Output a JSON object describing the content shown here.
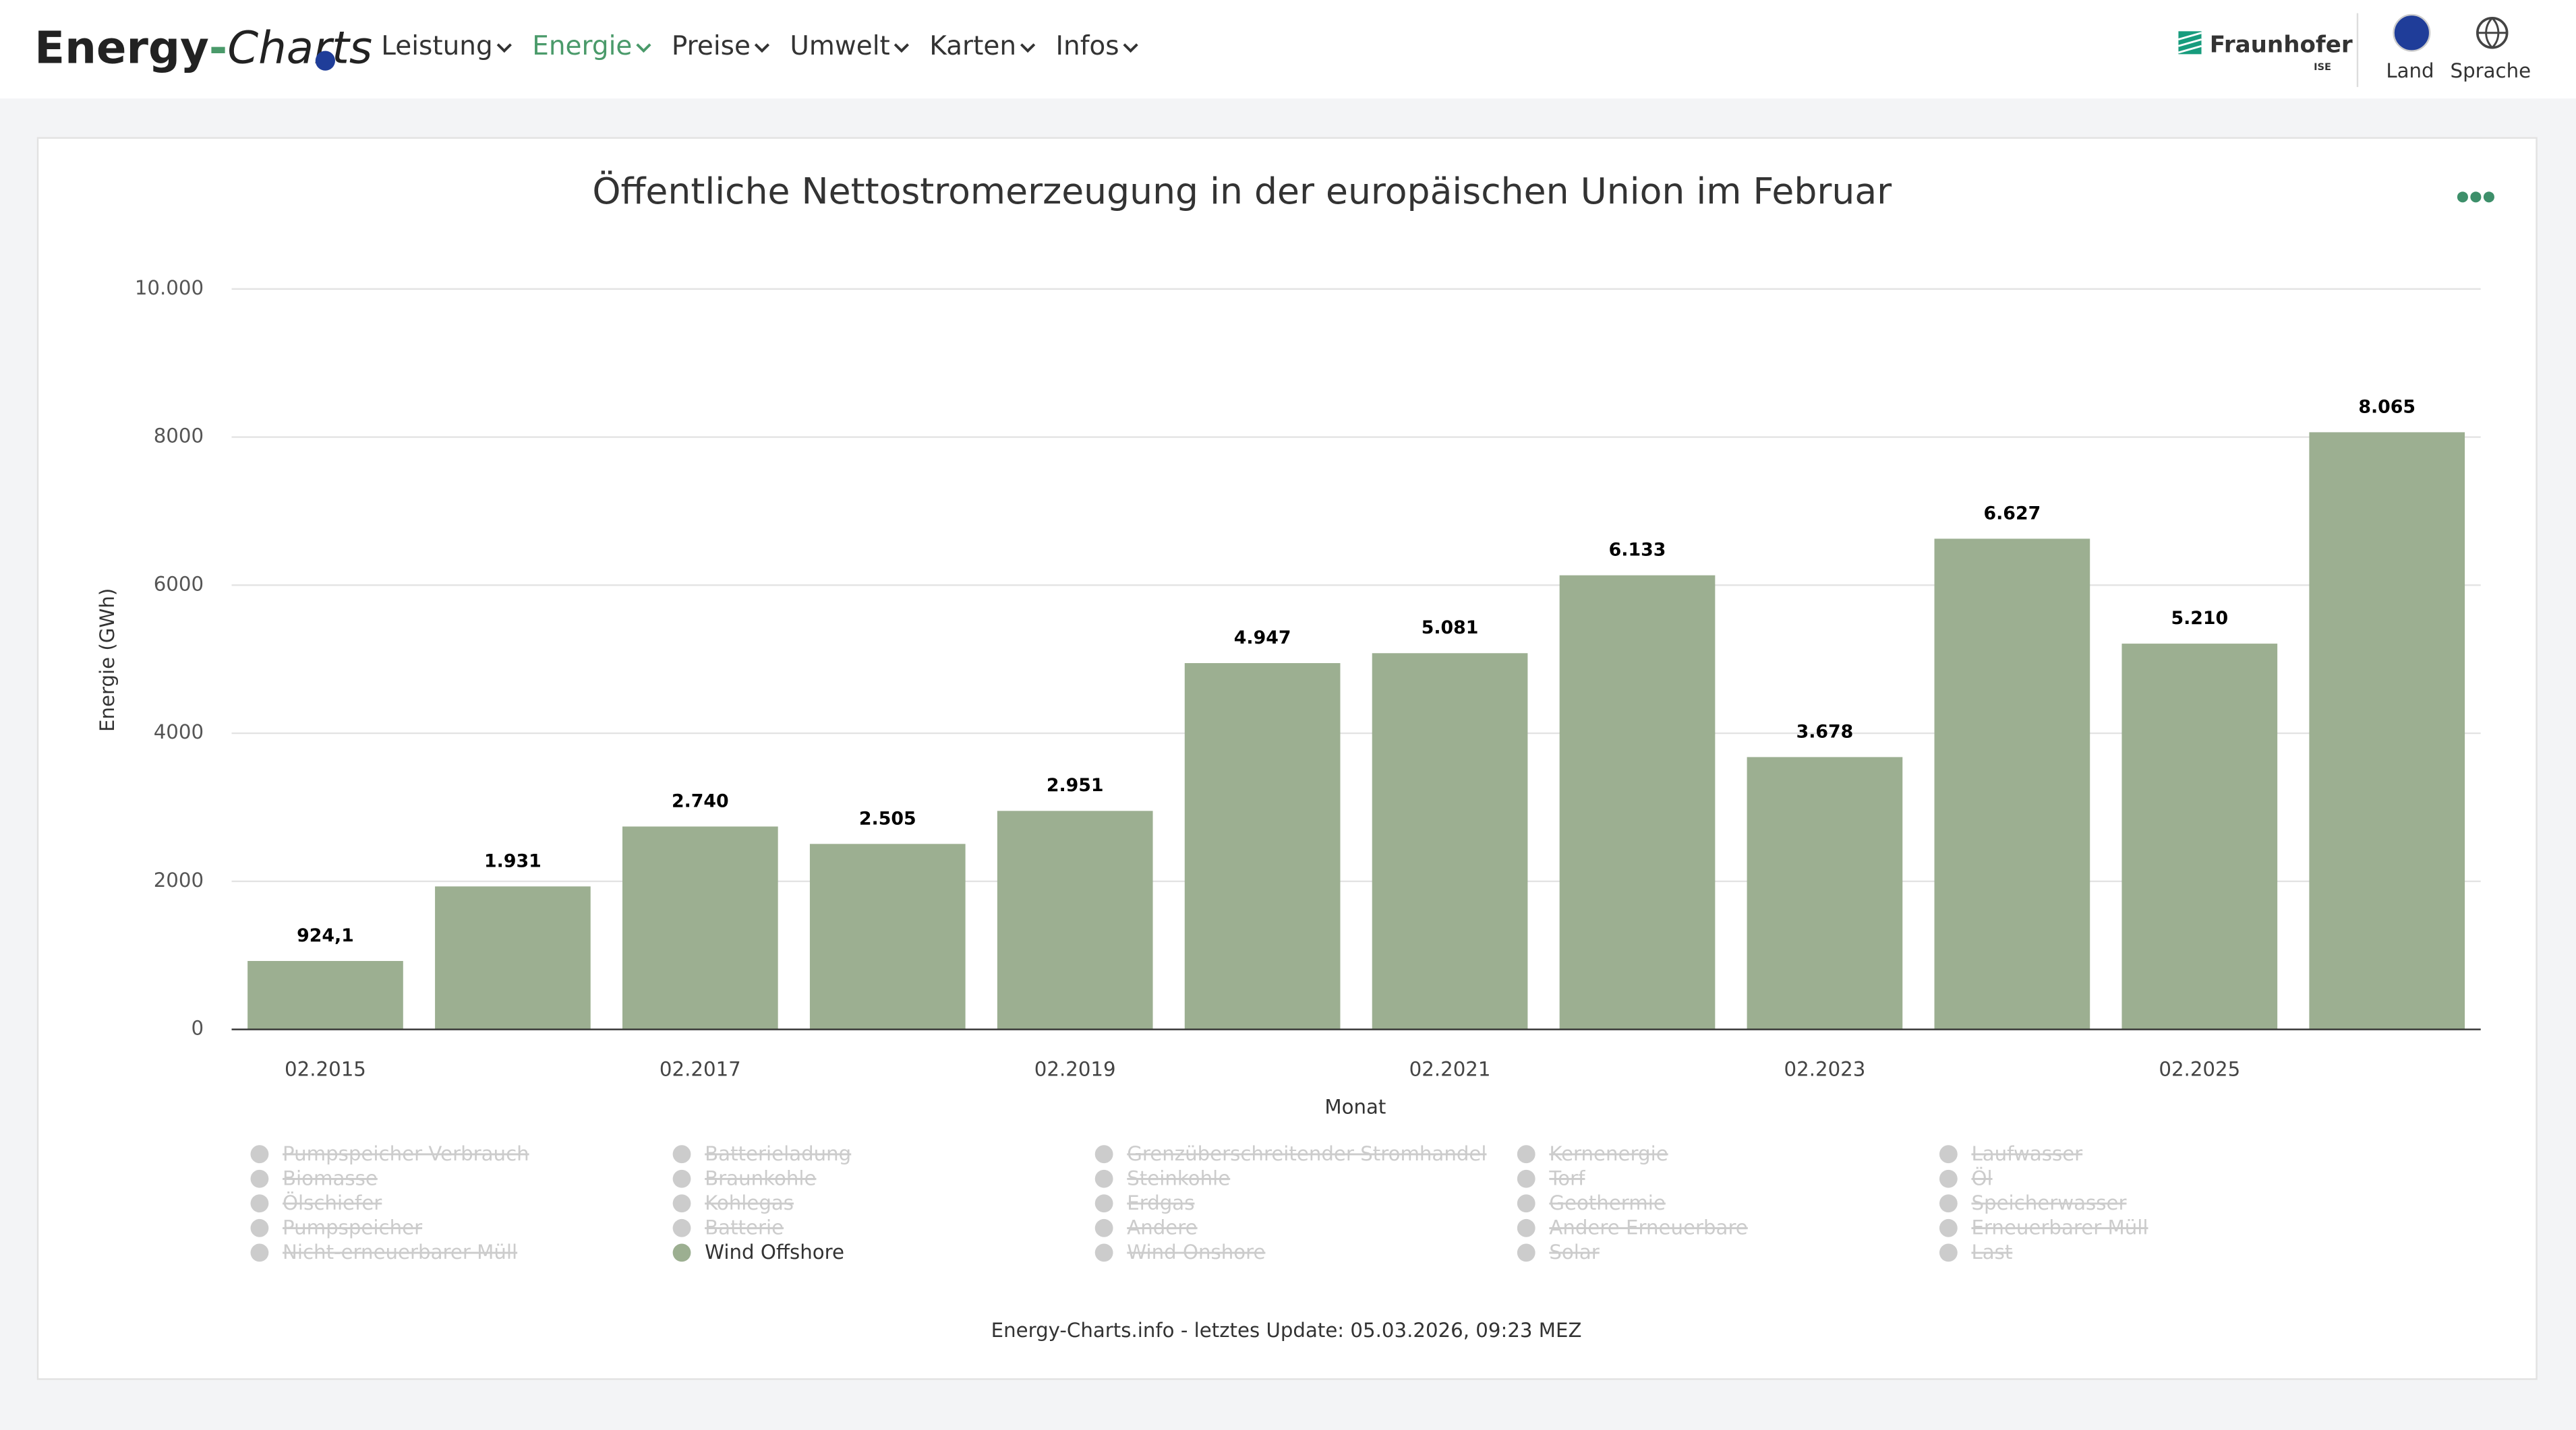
{
  "header": {
    "logo": [
      "Energy",
      "-",
      "Charts"
    ],
    "menu": [
      "Leistung",
      "Energie",
      "Preise",
      "Umwelt",
      "Karten",
      "Infos"
    ],
    "brand": "Fraunhofer",
    "brand_sub": "ISE",
    "actions": [
      "Land",
      "Sprache"
    ]
  },
  "chart_data": {
    "type": "bar",
    "title": "Öffentliche Nettostromerzeugung in der europäischen Union im Februar",
    "x_label": "Monat",
    "y_label": "Energie (GWh)",
    "categories": [
      "02.2015",
      null,
      "02.2017",
      null,
      "02.2019",
      null,
      "02.2021",
      null,
      "02.2023",
      null,
      "02.2025",
      null
    ],
    "series": [
      {
        "name": "Wind Offshore",
        "color": "#9caf91",
        "values": [
          924.1,
          1931,
          2740,
          2505,
          2951,
          4947,
          5081,
          6133,
          3678,
          6627,
          5210,
          8065
        ],
        "value_labels": [
          "924,1",
          "1.931",
          "2.740",
          "2.505",
          "2.951",
          "4.947",
          "5.081",
          "6.133",
          "3.678",
          "6.627",
          "5.210",
          "8.065"
        ]
      }
    ],
    "hidden_series": [
      "Pumpspeicher Verbrauch",
      "Batterieladung",
      "Grenzüberschreitender Stromhandel",
      "Kernenergie",
      "Laufwasser",
      "Biomasse",
      "Braunkohle",
      "Steinkohle",
      "Torf",
      "Öl",
      "Ölschiefer",
      "Kohlegas",
      "Erdgas",
      "Geothermie",
      "Speicherwasser",
      "Pumpspeicher",
      "Batterie",
      "Andere",
      "Andere Erneuerbare",
      "Erneuerbarer Müll",
      "Nicht-erneuerbarer Müll",
      "Wind Onshore",
      "Solar",
      "Last"
    ],
    "ylim": [
      0,
      10000
    ],
    "yticks": [
      0,
      2000,
      4000,
      6000,
      {
        "value": 10000,
        "label": "10.000"
      },
      8000
    ],
    "grid": true
  },
  "credit": "Energy-Charts.info - letztes Update: 05.03.2026, 09:23 MEZ"
}
